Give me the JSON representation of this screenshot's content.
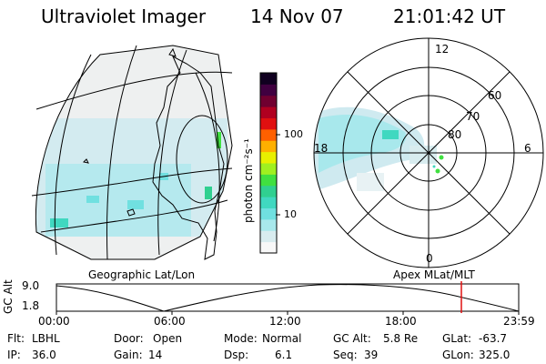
{
  "header": {
    "instrument": "Ultraviolet Imager",
    "date": "14 Nov 07",
    "time": "21:01:42 UT"
  },
  "colorbar": {
    "unit_label": "photon cm⁻²s⁻¹",
    "ticks": [
      "100",
      "10"
    ],
    "colors": [
      "#f8f8f8",
      "#d8ecef",
      "#a8e8ec",
      "#70e0e0",
      "#40d8c0",
      "#30d090",
      "#40e040",
      "#a0f020",
      "#e8f000",
      "#ffb000",
      "#ff6000",
      "#e01010",
      "#b00020",
      "#700030",
      "#400040",
      "#100020"
    ]
  },
  "geo_map": {
    "label": "Geographic Lat/Lon"
  },
  "polar_plot": {
    "label": "Apex MLat/MLT",
    "mlt_labels": {
      "top": "12",
      "left": "18",
      "right": "6",
      "bottom": "0"
    },
    "lat_labels": [
      "60",
      "70",
      "80"
    ]
  },
  "timeline": {
    "axis_label": "GC Alt",
    "y_ticks": [
      "9.0",
      "1.8"
    ],
    "x_ticks": [
      "00:00",
      "06:00",
      "12:00",
      "18:00",
      "23:59"
    ],
    "marker_time": "21:01",
    "marker_color": "#e01010"
  },
  "status": {
    "row1": [
      {
        "label": "Flt:",
        "value": "LBHL"
      },
      {
        "label": "Door:",
        "value": "Open"
      },
      {
        "label": "Mode:",
        "value": "Normal"
      },
      {
        "label": "GC Alt:",
        "value": "5.8 Re"
      },
      {
        "label": "GLat:",
        "value": "-63.7"
      }
    ],
    "row2": [
      {
        "label": "IP:",
        "value": "36.0"
      },
      {
        "label": "Gain:",
        "value": "14"
      },
      {
        "label": "Dsp:",
        "value": "6.1"
      },
      {
        "label": "Seq:",
        "value": "39"
      },
      {
        "label": "GLon:",
        "value": "325.0"
      }
    ]
  }
}
